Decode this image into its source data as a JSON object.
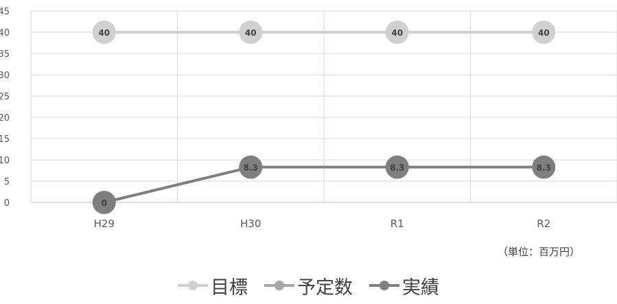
{
  "chart_data": {
    "type": "line",
    "categories": [
      "H29",
      "H30",
      "R1",
      "R2"
    ],
    "series": [
      {
        "name": "目標",
        "values": [
          40,
          40,
          40,
          40
        ],
        "color": "#d0d0d0",
        "labels": [
          "40",
          "40",
          "40",
          "40"
        ]
      },
      {
        "name": "予定数",
        "values": [
          null,
          null,
          null,
          null
        ],
        "color": "#a6a6a6",
        "labels": []
      },
      {
        "name": "実績",
        "values": [
          0,
          8.3,
          8.3,
          8.3
        ],
        "color": "#7f7f7f",
        "labels": [
          "0",
          "8.3",
          "8.3",
          "8.3"
        ]
      }
    ],
    "y_ticks": [
      "0",
      "5",
      "10",
      "15",
      "20",
      "25",
      "30",
      "35",
      "40",
      "45"
    ],
    "ylim": [
      0,
      45
    ],
    "grid": true,
    "legend_position": "bottom",
    "unit_note": "（単位：百万円）"
  }
}
